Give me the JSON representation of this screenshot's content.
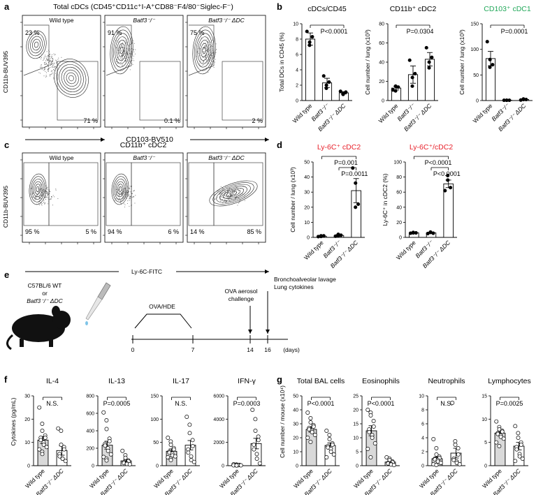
{
  "panels": {
    "a": {
      "label": "a",
      "title": "Total cDCs (CD45⁺CD11c⁺I-A⁺CD88⁻F4/80⁻Siglec-F⁻)",
      "xlabel": "CD103-BV510",
      "ylabel": "CD11b-BUV395",
      "plots": [
        {
          "name": "Wild type",
          "tl": "23 %",
          "br": "71 %",
          "variant": "wt"
        },
        {
          "name": "Batf3⁻/⁻",
          "tl": "91 %",
          "br": "0.1 %",
          "variant": "ko"
        },
        {
          "name": "Batf3⁻/⁻ ΔDC",
          "tl": "75 %",
          "br": "2 %",
          "variant": "kodc"
        }
      ]
    },
    "c": {
      "label": "c",
      "title": "CD11b⁺ cDC2",
      "xlabel": "Ly-6C-FITC",
      "ylabel": "CD11b-BUV395",
      "plots": [
        {
          "name": "Wild type",
          "left": "95 %",
          "right": "5 %",
          "variant": "wt"
        },
        {
          "name": "Batf3⁻/⁻",
          "left": "94 %",
          "right": "6 %",
          "variant": "ko"
        },
        {
          "name": "Batf3⁻/⁻ ΔDC",
          "left": "14 %",
          "right": "85 %",
          "variant": "kodc"
        }
      ]
    },
    "e": {
      "label": "e",
      "mouse_text": [
        "C57BL/6 WT",
        "or",
        "Batf3⁻/⁻ ΔDC"
      ],
      "ova_label": "OVA/HDE",
      "challenge_label": [
        "OVA aerosol",
        "challenge"
      ],
      "readout_label": [
        "Bronchoalveolar lavage",
        "Lung cytokines"
      ],
      "days": [
        "0",
        "7",
        "14",
        "16"
      ],
      "unit": "(days)"
    },
    "b_label": "b",
    "d_label": "d",
    "f_label": "f",
    "g_label": "g",
    "f_ylabel": "Cytokines (pg/mL)",
    "g_ylabel": "Cell number / mouse (x10⁴)"
  },
  "colors": {
    "black": "#000000",
    "red": "#e8202a",
    "green": "#22a85a",
    "bar_gray": "#d9d9d9"
  },
  "chart_data": [
    {
      "id": "b1",
      "type": "bar",
      "title": "cDCs/CD45",
      "title_color": "black",
      "ylabel": "Total DCs in CD45 (%)",
      "categories": [
        "Wild type",
        "Batf3⁻/⁻",
        "Batf3⁻/⁻ ΔDC"
      ],
      "values": [
        8.0,
        2.3,
        1.0
      ],
      "errors": [
        0.8,
        0.6,
        0.15
      ],
      "points": [
        [
          9.0,
          7.6,
          7.2,
          8.3
        ],
        [
          3.2,
          2.0,
          1.6,
          2.4
        ],
        [
          1.2,
          0.9,
          0.8,
          1.1
        ]
      ],
      "ylim": [
        0,
        10
      ],
      "yticks": [
        0,
        2,
        4,
        6,
        8,
        10
      ],
      "stats": [
        {
          "text": "P<0.0001",
          "from": 0,
          "to": 2
        }
      ]
    },
    {
      "id": "b2",
      "type": "bar",
      "title": "CD11b⁺ cDC2",
      "title_color": "black",
      "ylabel": "Cell number / lung (x10³)",
      "categories": [
        "Wild type",
        "Batf3⁻/⁻",
        "Batf3⁻/⁻ ΔDC"
      ],
      "values": [
        13,
        27,
        43
      ],
      "errors": [
        2,
        9,
        7
      ],
      "points": [
        [
          11,
          15,
          10,
          14
        ],
        [
          42,
          24,
          15,
          28
        ],
        [
          55,
          40,
          34,
          45
        ]
      ],
      "ylim": [
        0,
        80
      ],
      "yticks": [
        0,
        20,
        40,
        60,
        80
      ],
      "stats": [
        {
          "text": "P=0.0304",
          "from": 0,
          "to": 2
        }
      ]
    },
    {
      "id": "b3",
      "type": "bar",
      "title": "CD103⁺ cDC1",
      "title_color": "green",
      "ylabel": "Cell number / lung (x10³)",
      "categories": [
        "Wild type",
        "Batf3⁻/⁻",
        "Batf3⁻/⁻ ΔDC"
      ],
      "values": [
        82,
        0.5,
        2
      ],
      "errors": [
        14,
        0.3,
        1
      ],
      "points": [
        [
          115,
          80,
          65,
          70
        ],
        [
          0.5,
          0.5,
          0.5,
          0.5
        ],
        [
          1,
          2,
          3,
          2
        ]
      ],
      "ylim": [
        0,
        150
      ],
      "yticks": [
        0,
        50,
        100,
        150
      ],
      "stats": [
        {
          "text": "P=0.0001",
          "from": 0,
          "to": 2
        }
      ]
    },
    {
      "id": "d1",
      "type": "bar",
      "title": "Ly-6C⁺ cDC2",
      "title_color": "red",
      "ylabel": "Cell number / lung (x10³)",
      "categories": [
        "Wild type",
        "Batf3⁻/⁻",
        "Batf3⁻/⁻ ΔDC"
      ],
      "values": [
        0.8,
        1.3,
        31
      ],
      "errors": [
        0.3,
        0.6,
        8
      ],
      "points": [
        [
          0.5,
          1.0,
          0.6,
          1.0
        ],
        [
          0.8,
          2.0,
          1.0,
          1.4
        ],
        [
          46,
          36,
          20,
          22
        ]
      ],
      "ylim": [
        0,
        50
      ],
      "yticks": [
        0,
        10,
        20,
        30,
        40,
        50
      ],
      "stats": [
        {
          "text": "P=0.001",
          "from": 0,
          "to": 2
        },
        {
          "text": "P=0.0011",
          "from": 1,
          "to": 2
        }
      ]
    },
    {
      "id": "d2",
      "type": "bar",
      "title": "Ly-6C⁺/cDC2",
      "title_color": "red",
      "ylabel": "Ly-6C⁺ in cDC2 (%)",
      "categories": [
        "Wild type",
        "Batf3⁻/⁻",
        "Batf3⁻/⁻ ΔDC"
      ],
      "values": [
        6,
        6,
        71
      ],
      "errors": [
        0.5,
        0.8,
        5
      ],
      "points": [
        [
          5.5,
          6,
          6.5,
          6
        ],
        [
          5,
          6.5,
          7,
          5.5
        ],
        [
          62,
          76,
          82,
          66
        ]
      ],
      "ylim": [
        0,
        100
      ],
      "yticks": [
        0,
        20,
        40,
        60,
        80,
        100
      ],
      "stats": [
        {
          "text": "P<0.0001",
          "from": 0,
          "to": 2
        },
        {
          "text": "P<0.0001",
          "from": 1,
          "to": 2
        }
      ]
    },
    {
      "id": "f1",
      "type": "bar",
      "title": "IL-4",
      "title_color": "black",
      "ylabel": "",
      "categories": [
        "Wild type",
        "Batf3⁻/⁻ ΔDC"
      ],
      "values": [
        11,
        6.5
      ],
      "errors": [
        1.5,
        2
      ],
      "points": [
        [
          25,
          18,
          15,
          13,
          12,
          12,
          11,
          10,
          9,
          8,
          7,
          6,
          5
        ],
        [
          16,
          15,
          9,
          8,
          7,
          5,
          4,
          3,
          3,
          2
        ]
      ],
      "ylim": [
        0,
        30
      ],
      "yticks": [
        0,
        10,
        20,
        30
      ],
      "stats": [
        {
          "text": "N.S.",
          "from": 0,
          "to": 1
        }
      ]
    },
    {
      "id": "f2",
      "type": "bar",
      "title": "IL-13",
      "title_color": "black",
      "ylabel": "",
      "categories": [
        "Wild type",
        "Batf3⁻/⁻ ΔDC"
      ],
      "values": [
        235,
        55
      ],
      "errors": [
        45,
        15
      ],
      "points": [
        [
          610,
          520,
          420,
          310,
          280,
          250,
          230,
          200,
          170,
          130,
          100,
          80,
          60
        ],
        [
          170,
          120,
          90,
          60,
          50,
          40,
          30,
          25,
          20,
          15
        ]
      ],
      "ylim": [
        0,
        800
      ],
      "yticks": [
        0,
        200,
        400,
        600,
        800
      ],
      "stats": [
        {
          "text": "P=0.0005",
          "from": 0,
          "to": 1
        }
      ]
    },
    {
      "id": "f3",
      "type": "bar",
      "title": "IL-17",
      "title_color": "black",
      "ylabel": "",
      "categories": [
        "Wild type",
        "Batf3⁻/⁻ ΔDC"
      ],
      "values": [
        31,
        44
      ],
      "errors": [
        5,
        10
      ],
      "points": [
        [
          60,
          52,
          45,
          38,
          35,
          30,
          28,
          26,
          22,
          20,
          18,
          15,
          12
        ],
        [
          105,
          88,
          70,
          55,
          42,
          35,
          28,
          20,
          12,
          8
        ]
      ],
      "ylim": [
        0,
        150
      ],
      "yticks": [
        0,
        50,
        100,
        150
      ],
      "stats": [
        {
          "text": "N.S.",
          "from": 0,
          "to": 1
        }
      ]
    },
    {
      "id": "f4",
      "type": "bar",
      "title": "IFN-γ",
      "title_color": "black",
      "ylabel": "",
      "categories": [
        "Wild type",
        "Batf3⁻/⁻ ΔDC"
      ],
      "values": [
        60,
        1900
      ],
      "errors": [
        20,
        450
      ],
      "points": [
        [
          120,
          100,
          80,
          70,
          60,
          50,
          50,
          40,
          40,
          30,
          30,
          20,
          20
        ],
        [
          4800,
          4000,
          3000,
          2500,
          2200,
          1800,
          1400,
          1000,
          600,
          200
        ]
      ],
      "ylim": [
        0,
        6000
      ],
      "yticks": [
        0,
        2000,
        4000,
        6000
      ],
      "stats": [
        {
          "text": "P=0.0003",
          "from": 0,
          "to": 1
        }
      ]
    },
    {
      "id": "g1",
      "type": "bar",
      "title": "Total BAL cells",
      "title_color": "black",
      "ylabel": "",
      "categories": [
        "Wild type",
        "Batf3⁻/⁻ ΔDC"
      ],
      "values": [
        26,
        14.5
      ],
      "errors": [
        2,
        1.8
      ],
      "points": [
        [
          38,
          34,
          31,
          29,
          28,
          27,
          26,
          25,
          24,
          22,
          20,
          17
        ],
        [
          25,
          22,
          19,
          16,
          15,
          14,
          13,
          12,
          10,
          8,
          6
        ]
      ],
      "ylim": [
        0,
        50
      ],
      "yticks": [
        0,
        10,
        20,
        30,
        40,
        50
      ],
      "stats": [
        {
          "text": "P<0.0001",
          "from": 0,
          "to": 1
        }
      ]
    },
    {
      "id": "g2",
      "type": "bar",
      "title": "Eosinophils",
      "title_color": "black",
      "ylabel": "",
      "categories": [
        "Wild type",
        "Batf3⁻/⁻ ΔDC"
      ],
      "values": [
        12.5,
        1.3
      ],
      "errors": [
        1.8,
        0.4
      ],
      "points": [
        [
          20,
          19,
          18,
          16,
          14,
          13,
          12,
          11,
          10,
          8,
          6,
          3
        ],
        [
          3,
          2.5,
          2,
          1.5,
          1.2,
          1,
          0.8,
          0.6,
          0.4,
          0.2
        ]
      ],
      "ylim": [
        0,
        25
      ],
      "yticks": [
        0,
        5,
        10,
        15,
        20,
        25
      ],
      "stats": [
        {
          "text": "P<0.0001",
          "from": 0,
          "to": 1
        }
      ]
    },
    {
      "id": "g3",
      "type": "bar",
      "title": "Neutrophils",
      "title_color": "black",
      "ylabel": "",
      "categories": [
        "Wild type",
        "Batf3⁻/⁻ ΔDC"
      ],
      "values": [
        1.0,
        1.8
      ],
      "errors": [
        0.25,
        0.7
      ],
      "points": [
        [
          3.8,
          2.5,
          1.6,
          1.3,
          1.1,
          1.0,
          0.9,
          0.8,
          0.6,
          0.4,
          0.2,
          0.1
        ],
        [
          9,
          3.5,
          3,
          2.5,
          1.6,
          1,
          0.8,
          0.6,
          0.4,
          0.2
        ]
      ],
      "ylim": [
        0,
        10
      ],
      "yticks": [
        0,
        2,
        4,
        6,
        8,
        10
      ],
      "stats": [
        {
          "text": "N.S.",
          "from": 0,
          "to": 1
        }
      ]
    },
    {
      "id": "g4",
      "type": "bar",
      "title": "Lymphocytes",
      "title_color": "black",
      "ylabel": "",
      "categories": [
        "Wild type",
        "Batf3⁻/⁻ ΔDC"
      ],
      "values": [
        7,
        4.2
      ],
      "errors": [
        0.4,
        0.8
      ],
      "points": [
        [
          9.5,
          8.3,
          7.8,
          7.5,
          7.3,
          7.0,
          6.8,
          6.5,
          6.2,
          5.8,
          5.0,
          4.2
        ],
        [
          8.5,
          7,
          6,
          5,
          4.5,
          4,
          3.5,
          2.5,
          2,
          1.5,
          1
        ]
      ],
      "ylim": [
        0,
        15
      ],
      "yticks": [
        0,
        5,
        10,
        15
      ],
      "stats": [
        {
          "text": "P=0.0025",
          "from": 0,
          "to": 1
        }
      ]
    }
  ]
}
